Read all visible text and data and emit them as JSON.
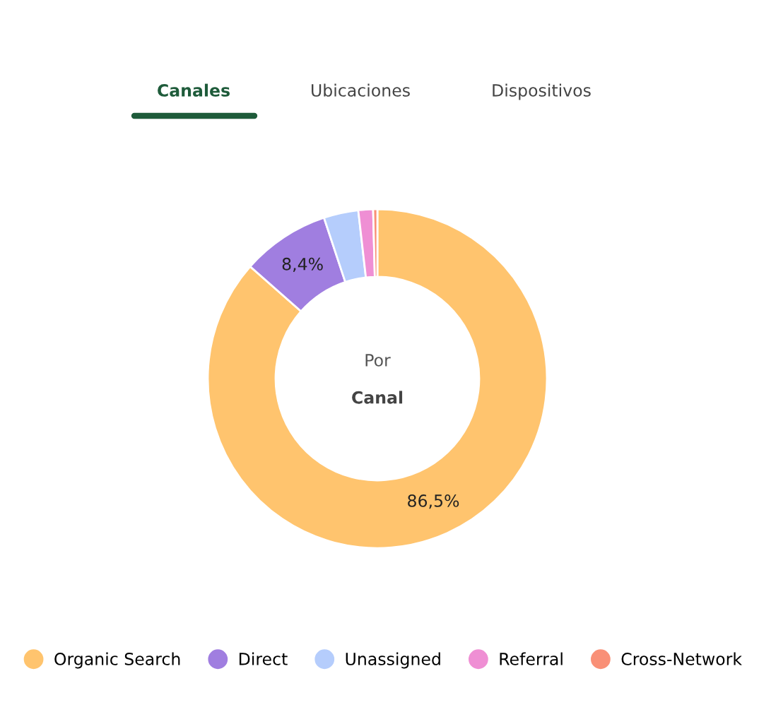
{
  "chart_data": {
    "type": "donut",
    "categories": [
      "Organic Search",
      "Direct",
      "Unassigned",
      "Referral",
      "Cross-Network"
    ],
    "values": [
      86.5,
      8.4,
      3.3,
      1.4,
      0.4
    ],
    "colors": [
      "#ffc46e",
      "#a07ee0",
      "#b5cdfc",
      "#ef8fd4",
      "#f99077"
    ],
    "value_labels": [
      "86,5%",
      "8,4%",
      null,
      null,
      null
    ],
    "annotations": [
      "Canales",
      "Ubicaciones",
      "Dispositivos",
      "Por",
      "Canal"
    ],
    "legend": "bottom"
  }
}
